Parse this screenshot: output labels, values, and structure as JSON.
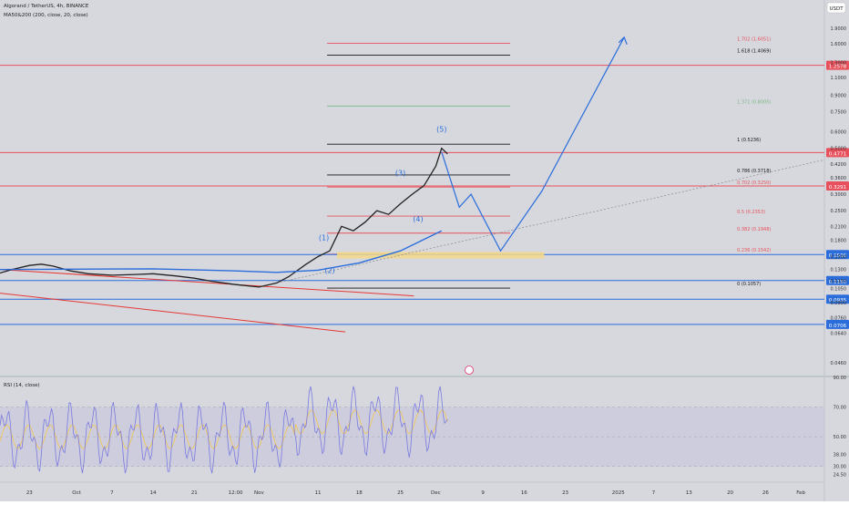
{
  "header": {
    "symbol_line": "Algorand / TetherUS, 4h, BINANCE",
    "indicator_line": "MA50&200 (200, close, 20, close)",
    "currency_badge": "USDT",
    "rsi_label": "RSI (14, close)"
  },
  "colors": {
    "background": "#d7d8de",
    "panel_border": "#a8b6b0",
    "fib_black": "#151515",
    "fib_red": "#e8505b",
    "fib_green": "#7ab784",
    "blue": "#2a6ddb",
    "red": "#e53935",
    "rsi_line": "#7a7ae0",
    "rsi_ma": "#f2c74c",
    "rsi_band": "#c7c4dc",
    "zone_fill": "#f5d98a",
    "price_badge": "#e53935",
    "support_badge": "#2a6ddb"
  },
  "chart_data": {
    "type": "line",
    "title": "Algorand / TetherUS, 4h, BINANCE",
    "scale": "log",
    "ylim": [
      0.04,
      2.6
    ],
    "xlim": [
      "Sep 18",
      "Feb 5"
    ],
    "x_ticks": [
      "23",
      "Oct",
      "7",
      "14",
      "21",
      "12:00",
      "Nov",
      "11",
      "18",
      "25",
      "Dec",
      "9",
      "16",
      "23",
      "2025",
      "7",
      "13",
      "20",
      "26",
      "Feb"
    ],
    "y_ticks": [
      1.9,
      1.6,
      1.3,
      1.1,
      0.9,
      0.75,
      0.6,
      0.5,
      0.42,
      0.36,
      0.3,
      0.25,
      0.21,
      0.18,
      0.15,
      0.13,
      0.115,
      0.105,
      0.09,
      0.076,
      0.064,
      0.046
    ],
    "y_tick_labels": [
      "1.9000",
      "1.6000",
      "1.3000",
      "1.1000",
      "0.9000",
      "0.7500",
      "0.6000",
      "0.5000",
      "0.4200",
      "0.3600",
      "0.3000",
      "0.2500",
      "0.2100",
      "0.1800",
      "0.1500",
      "0.1300",
      "0.1150",
      "0.1050",
      "0.0900",
      "0.0760",
      "0.0640",
      "0.0460"
    ],
    "series": [
      {
        "name": "Algorand / TetherUS",
        "x": [
          "Sep 18",
          "Sep 20",
          "Sep 23",
          "Sep 25",
          "Sep 27",
          "Sep 30",
          "Oct 3",
          "Oct 7",
          "Oct 11",
          "Oct 14",
          "Oct 18",
          "Oct 21",
          "Oct 24",
          "Oct 28",
          "Nov 1",
          "Nov 4",
          "Nov 6",
          "Nov 9",
          "Nov 11",
          "Nov 13",
          "Nov 15",
          "Nov 17",
          "Nov 19",
          "Nov 21",
          "Nov 23",
          "Nov 25",
          "Nov 27",
          "Nov 29",
          "Dec 1",
          "Dec 2",
          "Dec 3"
        ],
        "values": [
          0.125,
          0.13,
          0.136,
          0.138,
          0.135,
          0.128,
          0.124,
          0.122,
          0.123,
          0.124,
          0.121,
          0.118,
          0.114,
          0.11,
          0.107,
          0.112,
          0.12,
          0.138,
          0.15,
          0.16,
          0.21,
          0.2,
          0.22,
          0.25,
          0.24,
          0.27,
          0.3,
          0.33,
          0.41,
          0.5,
          0.47
        ]
      },
      {
        "name": "MA200",
        "x": [
          "Sep 18",
          "Oct 14",
          "Oct 28",
          "Nov 4",
          "Nov 11",
          "Nov 18",
          "Nov 25",
          "Dec 2"
        ],
        "values": [
          0.13,
          0.131,
          0.128,
          0.126,
          0.129,
          0.14,
          0.16,
          0.2
        ]
      },
      {
        "name": "Projection",
        "x": [
          "Dec 2",
          "Dec 5",
          "Dec 7",
          "Dec 12",
          "Dec 19",
          "Jan 2"
        ],
        "values": [
          0.48,
          0.26,
          0.3,
          0.16,
          0.31,
          1.72
        ]
      }
    ],
    "fib_levels": [
      {
        "label": "1.618 (1.4069)",
        "value": 1.4069,
        "color": "black"
      },
      {
        "label": "1.702 (1.6051)",
        "value": 1.6051,
        "color": "red"
      },
      {
        "label": "1.371 (0.8005)",
        "value": 0.8005,
        "color": "green"
      },
      {
        "label": "1 (0.5236)",
        "value": 0.5236,
        "color": "black"
      },
      {
        "label": "0.786 (0.3718)",
        "value": 0.3718,
        "color": "black"
      },
      {
        "label": "0.702 (0.3250)",
        "value": 0.325,
        "color": "red"
      },
      {
        "label": "0.5 (0.2353)",
        "value": 0.2353,
        "color": "red"
      },
      {
        "label": "0.382 (0.1948)",
        "value": 0.1948,
        "color": "red"
      },
      {
        "label": "0.236 (0.1542)",
        "value": 0.1542,
        "color": "red"
      },
      {
        "label": "0 (0.1057)",
        "value": 0.1057,
        "color": "black"
      }
    ],
    "price_badges": [
      {
        "label": "1.2578",
        "value": 1.2578,
        "color": "red"
      },
      {
        "label": "0.4771",
        "value": 0.4771,
        "color": "red"
      },
      {
        "label": "0.3291",
        "value": 0.3291,
        "color": "red"
      },
      {
        "label": "0.1536",
        "value": 0.1536,
        "color": "blue"
      },
      {
        "label": "0.1150",
        "value": 0.115,
        "color": "blue"
      },
      {
        "label": "0.0935",
        "value": 0.0935,
        "color": "blue"
      },
      {
        "label": "0.0706",
        "value": 0.0706,
        "color": "blue"
      }
    ],
    "wave_labels": [
      {
        "label": "(1)",
        "x": "Nov 12",
        "value": 0.18
      },
      {
        "label": "(2)",
        "x": "Nov 13",
        "value": 0.125
      },
      {
        "label": "(3)",
        "x": "Nov 25",
        "value": 0.37
      },
      {
        "label": "(4)",
        "x": "Nov 28",
        "value": 0.222
      },
      {
        "label": "(5)",
        "x": "Dec 2",
        "value": 0.6
      }
    ],
    "rsi": {
      "label": "RSI (14, close)",
      "ylim": [
        20,
        90
      ],
      "y_ticks": [
        90,
        70,
        50,
        38,
        30,
        24.5
      ],
      "y_tick_labels": [
        "90.00",
        "70.00",
        "50.00",
        "38.00",
        "30.00",
        "24.50"
      ],
      "band": [
        30,
        70
      ]
    }
  }
}
